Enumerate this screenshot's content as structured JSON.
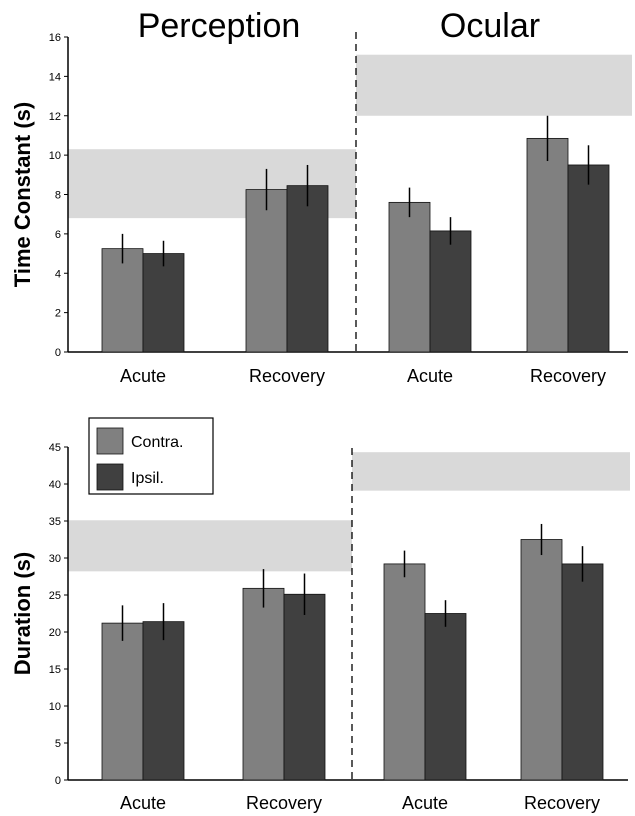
{
  "chart_data": [
    {
      "type": "bar",
      "title_left": "Perception",
      "title_right": "Ocular",
      "ylabel": "Time Constant (s)",
      "ylim": [
        0,
        16
      ],
      "yticks": [
        0,
        2,
        4,
        6,
        8,
        10,
        12,
        14,
        16
      ],
      "categories": [
        "Acute",
        "Recovery",
        "Acute",
        "Recovery"
      ],
      "series": [
        {
          "name": "Contra.",
          "color": "#808080",
          "values": [
            5.25,
            8.25,
            7.6,
            10.85
          ],
          "errors": [
            0.75,
            1.05,
            0.75,
            1.15
          ]
        },
        {
          "name": "Ipsil.",
          "color": "#404040",
          "values": [
            5.0,
            8.45,
            6.15,
            9.5
          ],
          "errors": [
            0.65,
            1.05,
            0.7,
            1.0
          ]
        }
      ],
      "shaded_bands": [
        {
          "section": "Perception",
          "range": [
            6.8,
            10.3
          ]
        },
        {
          "section": "Ocular",
          "range": [
            12.0,
            15.1
          ]
        }
      ],
      "grid": false
    },
    {
      "type": "bar",
      "ylabel": "Duration (s)",
      "ylim": [
        0,
        45
      ],
      "yticks": [
        0,
        5,
        10,
        15,
        20,
        25,
        30,
        35,
        40,
        45
      ],
      "categories": [
        "Acute",
        "Recovery",
        "Acute",
        "Recovery"
      ],
      "series": [
        {
          "name": "Contra.",
          "color": "#808080",
          "values": [
            21.2,
            25.9,
            29.2,
            32.5
          ],
          "errors": [
            2.4,
            2.6,
            1.8,
            2.1
          ]
        },
        {
          "name": "Ipsil.",
          "color": "#404040",
          "values": [
            21.4,
            25.1,
            22.5,
            29.2
          ],
          "errors": [
            2.5,
            2.8,
            1.8,
            2.4
          ]
        }
      ],
      "shaded_bands": [
        {
          "section": "Perception",
          "range": [
            28.2,
            35.1
          ]
        },
        {
          "section": "Ocular",
          "range": [
            39.1,
            44.3
          ]
        }
      ],
      "legend": {
        "placement": "top-left",
        "entries": [
          "Contra.",
          "Ipsil."
        ]
      },
      "grid": false
    }
  ]
}
